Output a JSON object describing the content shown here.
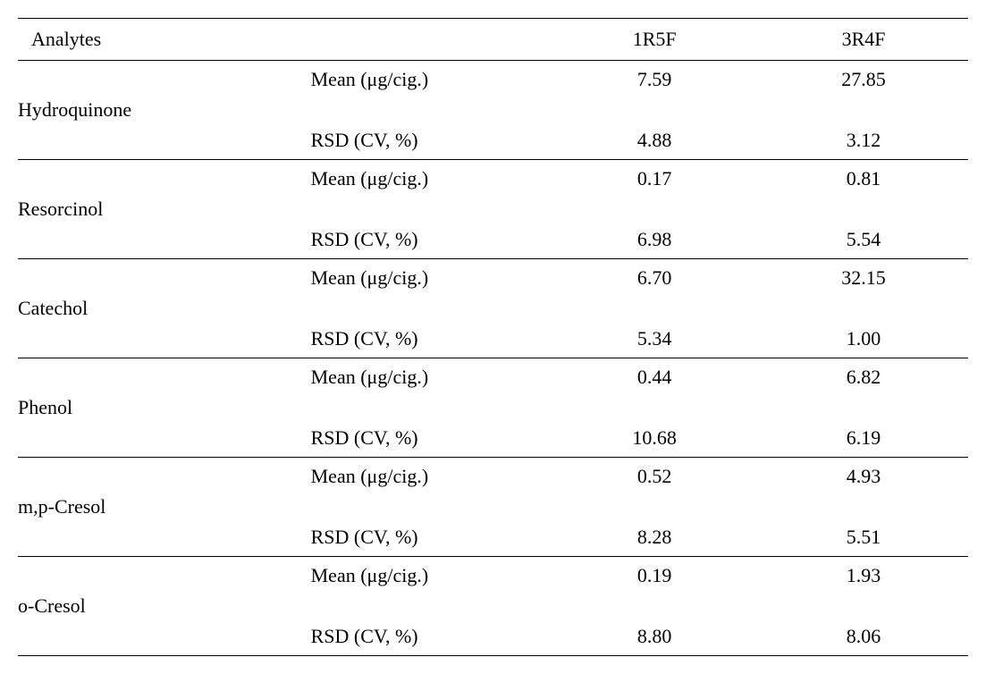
{
  "table": {
    "headers": {
      "analytes": "Analytes",
      "col1": "1R5F",
      "col2": "3R4F"
    },
    "labels": {
      "mean": "Mean (μg/cig.)",
      "rsd": "RSD (CV, %)"
    },
    "rows": [
      {
        "name": "Hydroquinone",
        "mean_1": "7.59",
        "mean_2": "27.85",
        "rsd_1": "4.88",
        "rsd_2": "3.12"
      },
      {
        "name": "Resorcinol",
        "mean_1": "0.17",
        "mean_2": "0.81",
        "rsd_1": "6.98",
        "rsd_2": "5.54"
      },
      {
        "name": "Catechol",
        "mean_1": "6.70",
        "mean_2": "32.15",
        "rsd_1": "5.34",
        "rsd_2": "1.00"
      },
      {
        "name": "Phenol",
        "mean_1": "0.44",
        "mean_2": "6.82",
        "rsd_1": "10.68",
        "rsd_2": "6.19"
      },
      {
        "name": "m,p-Cresol",
        "mean_1": "0.52",
        "mean_2": "4.93",
        "rsd_1": "8.28",
        "rsd_2": "5.51"
      },
      {
        "name": "o-Cresol",
        "mean_1": "0.19",
        "mean_2": "1.93",
        "rsd_1": "8.80",
        "rsd_2": "8.06"
      }
    ],
    "styling": {
      "font_family": "Times New Roman",
      "font_size_pt": 16,
      "border_color": "#000000",
      "background_color": "#ffffff",
      "text_color": "#000000",
      "header_border_width": 1.5,
      "row_border_width": 1
    }
  }
}
